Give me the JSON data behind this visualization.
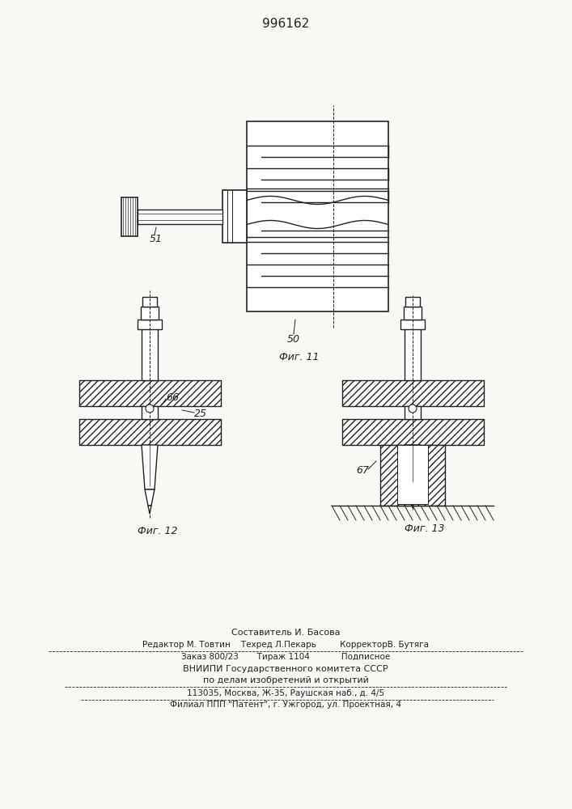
{
  "title": "996162",
  "bg_color": "#f8f8f4",
  "fig11_caption": "Фиг. 11",
  "fig12_caption": "Фиг. 12",
  "fig13_caption": "Фиг. 13",
  "label_51": "51",
  "label_50": "50",
  "label_66": "66",
  "label_25": "25",
  "label_67": "67",
  "footer_lines": [
    "Составитель И. Басова",
    "Редактор М. Товтин    Техред Л.Пекарь         КорректорВ. Бутяга",
    "Заказ 800/23       Тираж 1104            Подписное",
    "ВНИИПИ Государственного комитета СССР",
    "по делам изобретений и открытий",
    "113035, Москва, Ж-35, Раушская наб., д. 4/5",
    "Филиал ППП \"Патент\", г. Ужгород, ул. Проектная, 4"
  ]
}
